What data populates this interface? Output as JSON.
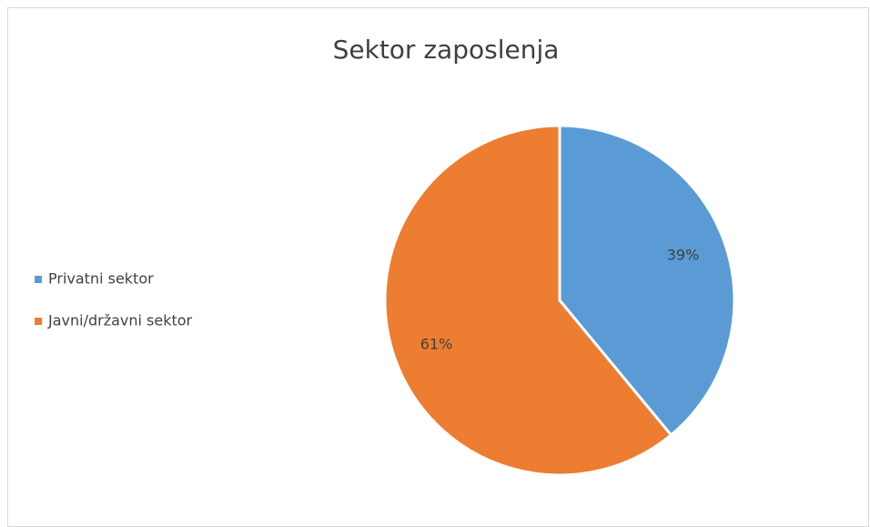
{
  "chart_data": {
    "type": "pie",
    "title": "Sektor zaposlenja",
    "categories": [
      "Privatni sektor",
      "Javni/državni sektor"
    ],
    "values": [
      39,
      61
    ],
    "value_labels": [
      "39%",
      "61%"
    ],
    "colors": [
      "#5b9bd5",
      "#ed7d31"
    ],
    "legend": "left"
  }
}
